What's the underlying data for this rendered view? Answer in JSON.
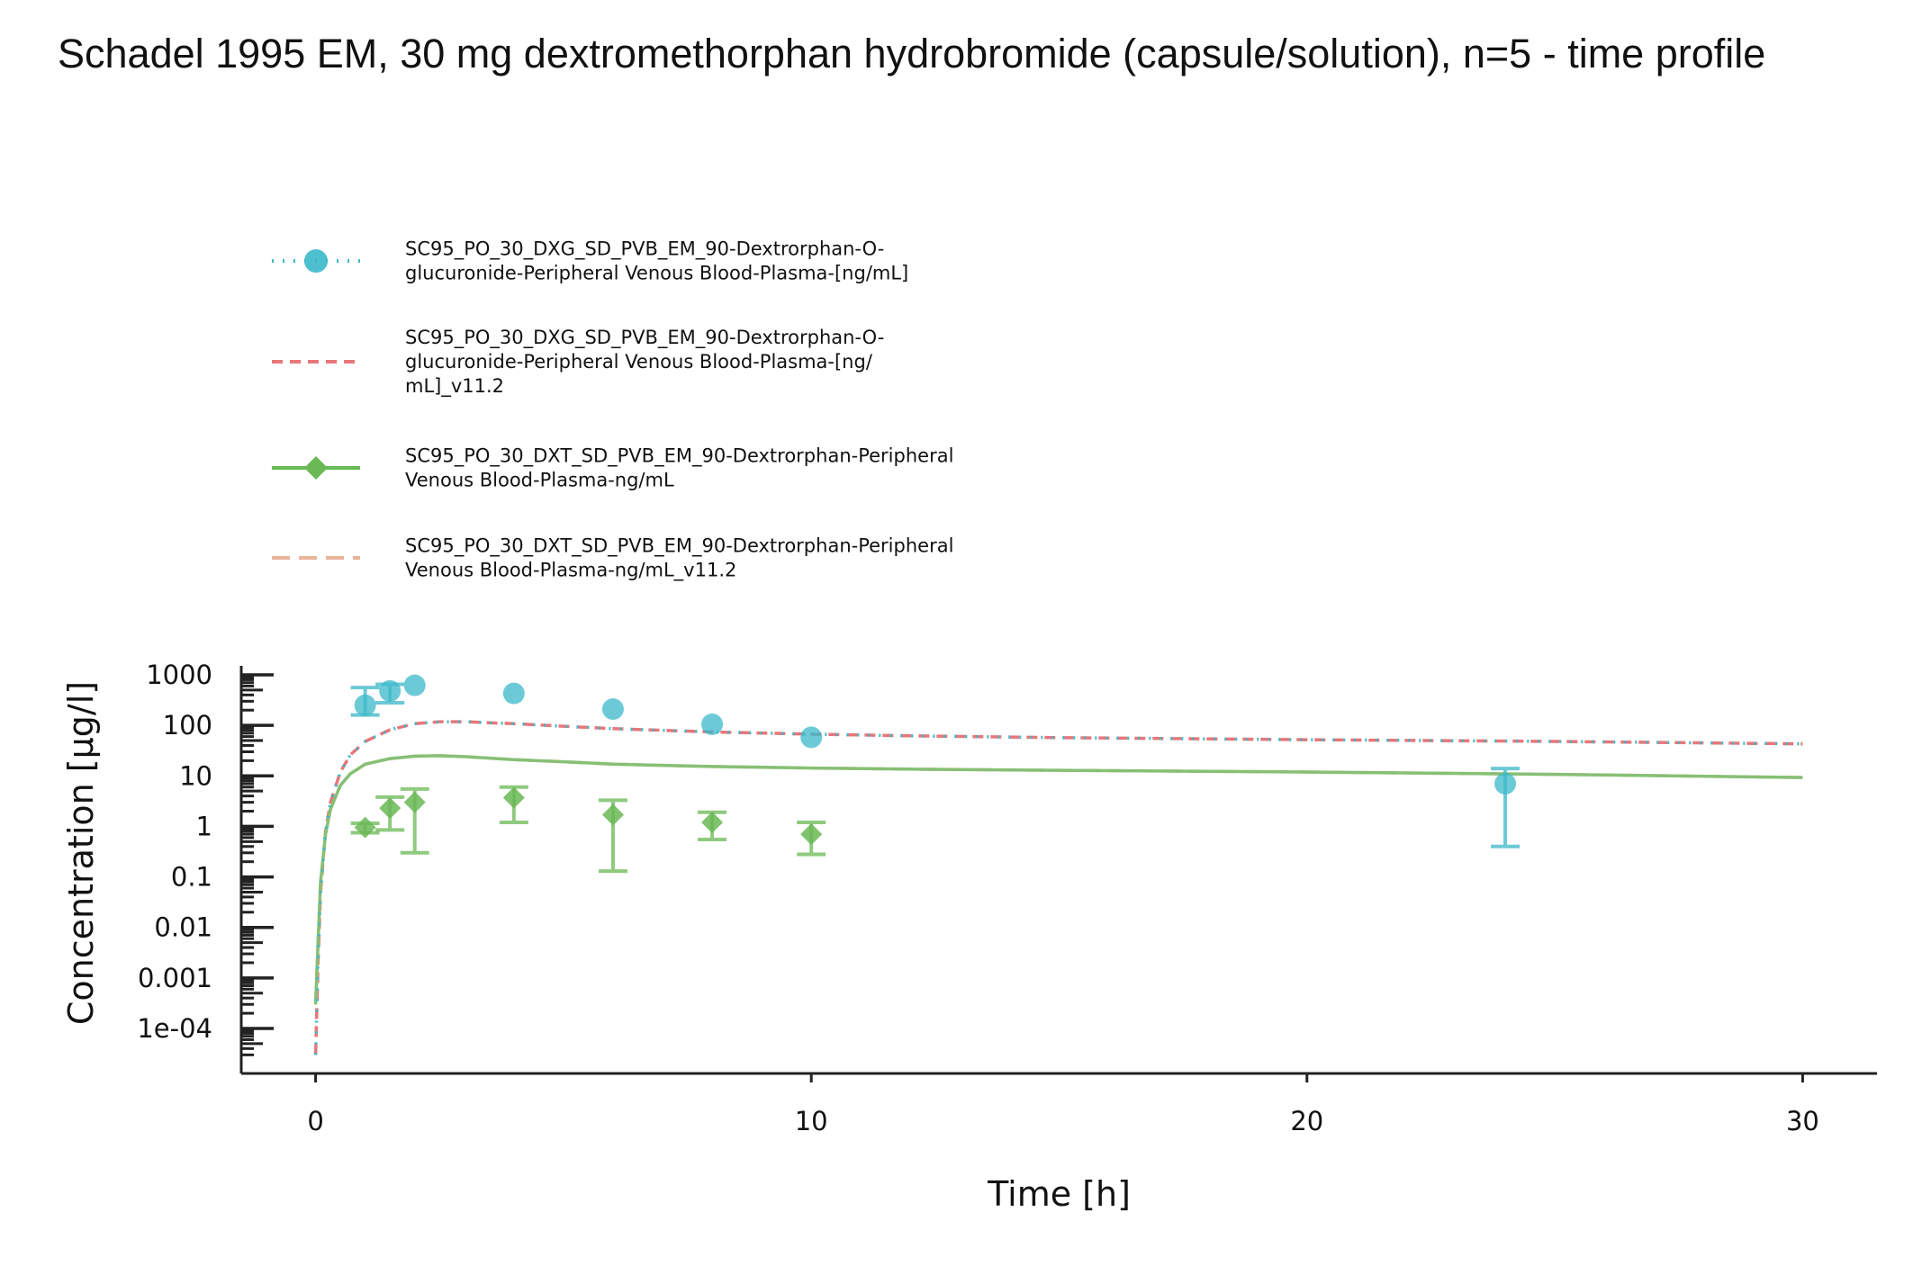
{
  "chart_data": {
    "type": "scatter",
    "title": "Schadel 1995 EM, 30 mg dextromethorphan hydrobromide (capsule/solution), n=5 - time profile",
    "xlabel": "Time [h]",
    "ylabel": "Concentration [µg/l]",
    "xlim": [
      -1.5,
      31.5
    ],
    "x_ticks": [
      0,
      10,
      20,
      30
    ],
    "x_tick_labels": [
      "0",
      "10",
      "20",
      "30"
    ],
    "yscale": "log",
    "y_ticks": [
      0.0001,
      0.001,
      0.01,
      0.1,
      1,
      10,
      100,
      1000
    ],
    "y_tick_labels": [
      "1e-04",
      "0.001",
      "0.01",
      "0.1",
      "1",
      "10",
      "100",
      "1000"
    ],
    "grid": false,
    "legend_position": "top-left",
    "series": [
      {
        "name": "SC95_PO_30_DXG_SD_PVB_EM_90-Dextrorphan-O-glucuronide-Peripheral Venous Blood-Plasma-[ng/mL]",
        "legend_lines": [
          "SC95_PO_30_DXG_SD_PVB_EM_90-Dextrorphan-O-",
          "glucuronide-Peripheral Venous Blood-Plasma-[ng/mL]"
        ],
        "kind": "observed",
        "marker": "circle",
        "line_style": "dotted",
        "color": "#3bb8c9",
        "x": [
          1,
          1.5,
          2,
          4,
          6,
          8,
          10,
          24
        ],
        "y": [
          250,
          480,
          620,
          430,
          210,
          105,
          58,
          7
        ],
        "y_low": [
          160,
          280,
          null,
          null,
          null,
          null,
          null,
          0.4
        ],
        "y_high": [
          560,
          650,
          null,
          null,
          null,
          null,
          null,
          14
        ]
      },
      {
        "name": "SC95_PO_30_DXG_SD_PVB_EM_90-Dextrorphan-O-glucuronide-Peripheral Venous Blood-Plasma-[ng/mL]_v11.2",
        "legend_lines": [
          "SC95_PO_30_DXG_SD_PVB_EM_90-Dextrorphan-O-",
          "glucuronide-Peripheral Venous Blood-Plasma-[ng/",
          "mL]_v11.2"
        ],
        "kind": "simulated",
        "line_style": "dashed",
        "color": "#e8767a",
        "x": [
          0,
          0.05,
          0.1,
          0.2,
          0.3,
          0.5,
          0.7,
          1,
          1.5,
          2,
          2.5,
          3,
          4,
          5,
          6,
          8,
          10,
          12,
          15,
          20,
          25,
          30
        ],
        "y": [
          3e-05,
          0.002,
          0.05,
          0.8,
          3,
          12,
          26,
          48,
          82,
          108,
          118,
          118,
          108,
          96,
          86,
          74,
          67,
          62,
          57,
          52,
          48,
          43
        ]
      },
      {
        "name": "SC95_PO_30_DXT_SD_PVB_EM_90-Dextrorphan-Peripheral Venous Blood-Plasma-ng/mL",
        "legend_lines": [
          "SC95_PO_30_DXT_SD_PVB_EM_90-Dextrorphan-Peripheral",
          "Venous Blood-Plasma-ng/mL"
        ],
        "kind": "observed",
        "marker": "diamond",
        "line_style": "solid",
        "color": "#6ab955",
        "x": [
          1,
          1.5,
          2,
          4,
          6,
          8,
          10
        ],
        "y": [
          0.95,
          2.3,
          3,
          3.7,
          1.7,
          1.2,
          0.7
        ],
        "y_low": [
          0.75,
          0.85,
          0.3,
          1.2,
          0.13,
          0.55,
          0.28
        ],
        "y_high": [
          1.15,
          3.8,
          5.5,
          6,
          3.3,
          1.9,
          1.2
        ]
      },
      {
        "name": "SC95_PO_30_DXT_SD_PVB_EM_90-Dextrorphan-Peripheral Venous Blood-Plasma-ng/mL_v11.2",
        "legend_lines": [
          "SC95_PO_30_DXT_SD_PVB_EM_90-Dextrorphan-Peripheral",
          "Venous Blood-Plasma-ng/mL_v11.2"
        ],
        "kind": "simulated",
        "line_style": "long-dashed",
        "color": "#e8b49a",
        "x": [
          0,
          0.05,
          0.1,
          0.2,
          0.3,
          0.5,
          0.7,
          1,
          1.5,
          2,
          2.5,
          3,
          4,
          5,
          6,
          8,
          10,
          12,
          15,
          20,
          25,
          30
        ],
        "y": [
          0.0003,
          0.005,
          0.08,
          0.7,
          2.2,
          6.5,
          11,
          17,
          22,
          24.5,
          25,
          24,
          21,
          19,
          17,
          15.3,
          14.3,
          13.6,
          12.9,
          11.9,
          10.7,
          9.3
        ]
      },
      {
        "name": "",
        "legend_lines": [],
        "kind": "simulated-overlay",
        "line_style": "solid",
        "color": "#86c075",
        "x": [
          0,
          0.05,
          0.1,
          0.2,
          0.3,
          0.5,
          0.7,
          1,
          1.5,
          2,
          2.5,
          3,
          4,
          5,
          6,
          8,
          10,
          12,
          15,
          20,
          25,
          30
        ],
        "y": [
          0.0003,
          0.005,
          0.08,
          0.7,
          2.2,
          6.5,
          11,
          17,
          22,
          24.5,
          25,
          24,
          21,
          19,
          17,
          15.3,
          14.3,
          13.6,
          12.9,
          11.9,
          10.7,
          9.3
        ]
      },
      {
        "name": "",
        "legend_lines": [],
        "kind": "simulated-overlay",
        "line_style": "dotted",
        "color": "#3bb8c9",
        "x": [
          0,
          0.05,
          0.1,
          0.2,
          0.3,
          0.5,
          0.7,
          1,
          1.5,
          2,
          2.5,
          3,
          4,
          5,
          6,
          8,
          10,
          12,
          15,
          20,
          25,
          30
        ],
        "y": [
          3e-05,
          0.002,
          0.05,
          0.8,
          3,
          12,
          26,
          48,
          82,
          108,
          118,
          118,
          108,
          96,
          86,
          74,
          67,
          62,
          57,
          52,
          48,
          43
        ]
      }
    ]
  }
}
